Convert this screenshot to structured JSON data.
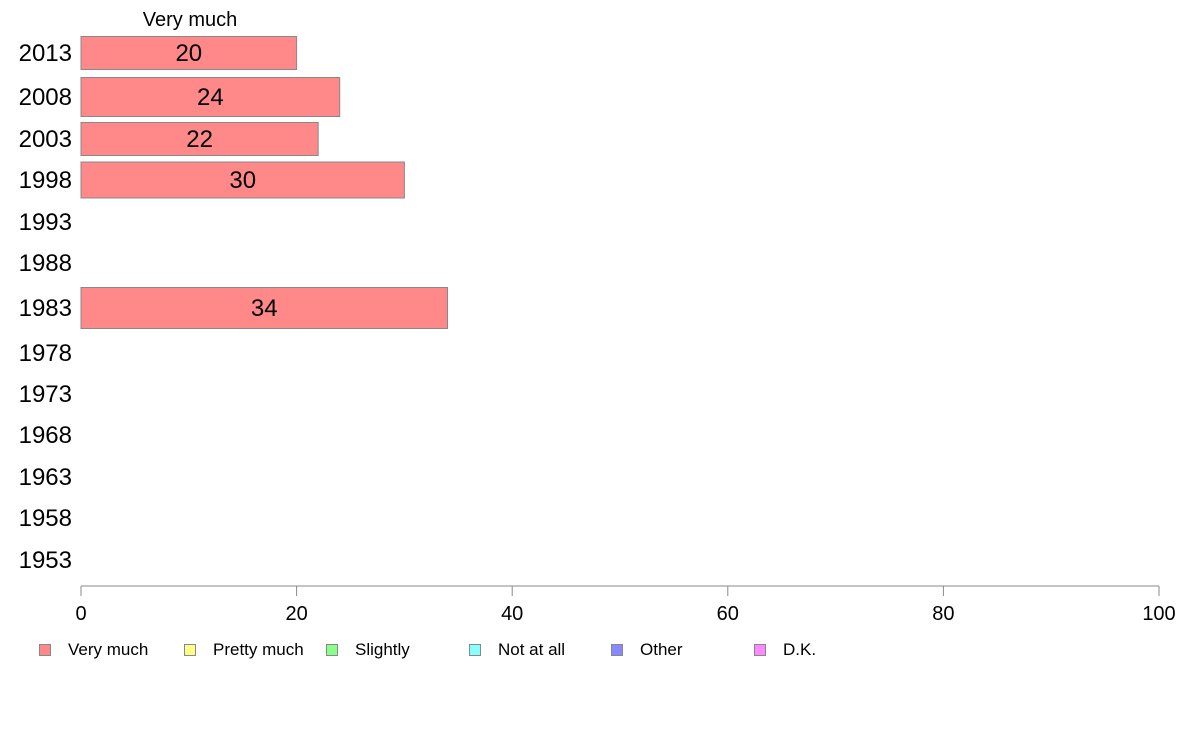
{
  "chart_data": {
    "type": "bar",
    "orientation": "horizontal",
    "stacked": true,
    "categories": [
      "2013",
      "2008",
      "2003",
      "1998",
      "1993",
      "1988",
      "1983",
      "1978",
      "1973",
      "1968",
      "1963",
      "1958",
      "1953"
    ],
    "series": [
      {
        "name": "Very much",
        "color": "#ff8888",
        "values": [
          20,
          24,
          22,
          30,
          null,
          null,
          34,
          null,
          null,
          null,
          null,
          null,
          null
        ]
      },
      {
        "name": "Pretty much",
        "color": "#ffff88",
        "values": [
          null,
          null,
          null,
          null,
          null,
          null,
          null,
          null,
          null,
          null,
          null,
          null,
          null
        ]
      },
      {
        "name": "Slightly",
        "color": "#88ff88",
        "values": [
          null,
          null,
          null,
          null,
          null,
          null,
          null,
          null,
          null,
          null,
          null,
          null,
          null
        ]
      },
      {
        "name": "Not at all",
        "color": "#88ffff",
        "values": [
          null,
          null,
          null,
          null,
          null,
          null,
          null,
          null,
          null,
          null,
          null,
          null,
          null
        ]
      },
      {
        "name": "Other",
        "color": "#8888ff",
        "values": [
          null,
          null,
          null,
          null,
          null,
          null,
          null,
          null,
          null,
          null,
          null,
          null,
          null
        ]
      },
      {
        "name": "D.K.",
        "color": "#ff88ff",
        "values": [
          null,
          null,
          null,
          null,
          null,
          null,
          null,
          null,
          null,
          null,
          null,
          null,
          null
        ]
      }
    ],
    "column_header": "Very much",
    "xlim": [
      0,
      100
    ],
    "xticks": [
      0,
      20,
      40,
      60,
      80,
      100
    ],
    "grid": false,
    "legend_position": "bottom"
  }
}
